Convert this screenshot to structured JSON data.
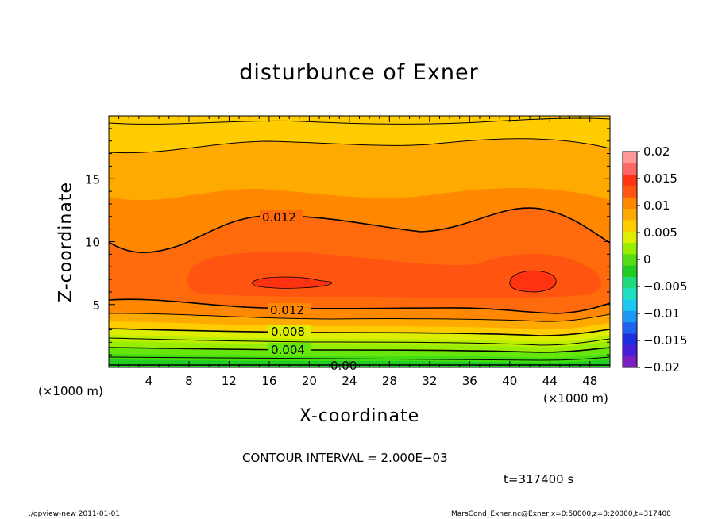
{
  "chart_data": {
    "type": "heatmap",
    "title": "disturbunce of Exner",
    "xlabel": "X-coordinate",
    "ylabel": "Z-coordinate",
    "x_unit_label": "(×1000 m)",
    "x_ticks": [
      "4",
      "8",
      "12",
      "16",
      "20",
      "24",
      "28",
      "32",
      "36",
      "40",
      "44",
      "48"
    ],
    "y_ticks": [
      "5",
      "10",
      "15"
    ],
    "xlim": [
      0,
      50
    ],
    "ylim": [
      0,
      20
    ],
    "contour_labels": [
      "0.012",
      "0.012",
      "0.008",
      "0.004",
      "0.00"
    ],
    "colorbar": {
      "ticks": [
        "0.02",
        "0.015",
        "0.01",
        "0.005",
        "0",
        "−0.005",
        "−0.01",
        "−0.015",
        "−0.02"
      ],
      "range": [
        -0.02,
        0.02
      ],
      "colors": [
        "#7a1fc0",
        "#4b1fd6",
        "#1f2fe0",
        "#1f62f0",
        "#1f98f5",
        "#1fc8f0",
        "#1fe0c0",
        "#1fd880",
        "#22cc22",
        "#55dd11",
        "#99ee00",
        "#ddee00",
        "#ffcc00",
        "#ffaa00",
        "#ff8800",
        "#ff5511",
        "#ff3311",
        "#ff6666",
        "#ff9999"
      ]
    },
    "contour_interval_text": "CONTOUR INTERVAL = 2.000E−03",
    "time_text": "t=317400 s"
  },
  "footer": {
    "left": "./gpview-new   2011-01-01",
    "right": "MarsCond_Exner.nc@Exner,x=0:50000,z=0:20000,t=317400"
  }
}
